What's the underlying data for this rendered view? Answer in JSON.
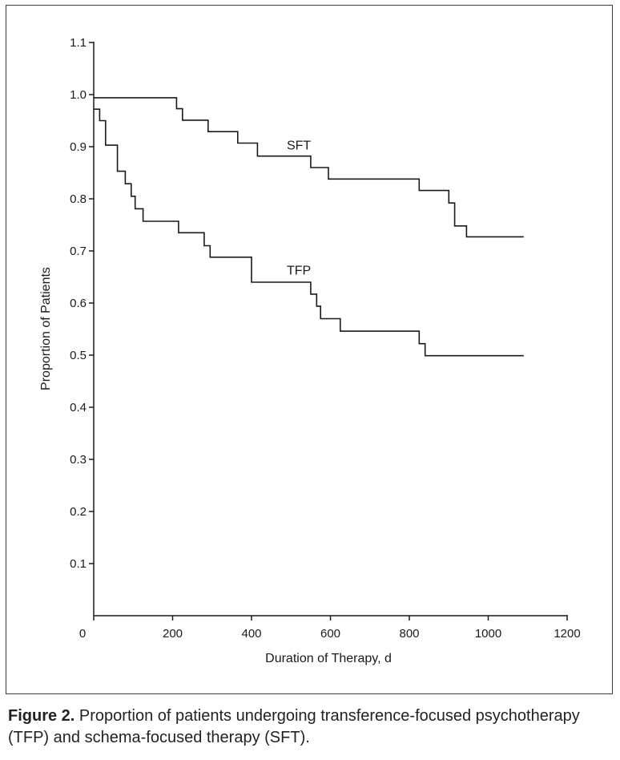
{
  "chart_data": {
    "type": "line",
    "step": true,
    "xlabel": "Duration of Therapy, d",
    "ylabel": "Proportion of Patients",
    "xlim": [
      0,
      1200
    ],
    "ylim": [
      0,
      1.1
    ],
    "xticks": [
      "0",
      "200",
      "400",
      "600",
      "800",
      "1000",
      "1200"
    ],
    "yticks": [
      "0.1",
      "0.2",
      "0.3",
      "0.4",
      "0.5",
      "0.6",
      "0.7",
      "0.8",
      "0.9",
      "1.0",
      "1.1"
    ],
    "grid": false,
    "series": [
      {
        "name": "SFT",
        "label_at": [
          520,
          0.895
        ],
        "points": [
          [
            0,
            0.994
          ],
          [
            210,
            0.994
          ],
          [
            210,
            0.973
          ],
          [
            225,
            0.973
          ],
          [
            225,
            0.951
          ],
          [
            290,
            0.951
          ],
          [
            290,
            0.929
          ],
          [
            365,
            0.929
          ],
          [
            365,
            0.907
          ],
          [
            415,
            0.907
          ],
          [
            415,
            0.882
          ],
          [
            550,
            0.882
          ],
          [
            550,
            0.86
          ],
          [
            595,
            0.86
          ],
          [
            595,
            0.838
          ],
          [
            825,
            0.838
          ],
          [
            825,
            0.816
          ],
          [
            900,
            0.816
          ],
          [
            900,
            0.792
          ],
          [
            915,
            0.792
          ],
          [
            915,
            0.748
          ],
          [
            945,
            0.748
          ],
          [
            945,
            0.727
          ],
          [
            1090,
            0.727
          ]
        ]
      },
      {
        "name": "TFP",
        "label_at": [
          520,
          0.655
        ],
        "points": [
          [
            0,
            0.972
          ],
          [
            15,
            0.972
          ],
          [
            15,
            0.95
          ],
          [
            30,
            0.95
          ],
          [
            30,
            0.903
          ],
          [
            60,
            0.903
          ],
          [
            60,
            0.853
          ],
          [
            80,
            0.853
          ],
          [
            80,
            0.829
          ],
          [
            95,
            0.829
          ],
          [
            95,
            0.805
          ],
          [
            105,
            0.805
          ],
          [
            105,
            0.781
          ],
          [
            125,
            0.781
          ],
          [
            125,
            0.757
          ],
          [
            215,
            0.757
          ],
          [
            215,
            0.735
          ],
          [
            280,
            0.735
          ],
          [
            280,
            0.71
          ],
          [
            295,
            0.71
          ],
          [
            295,
            0.688
          ],
          [
            400,
            0.688
          ],
          [
            400,
            0.64
          ],
          [
            550,
            0.64
          ],
          [
            550,
            0.617
          ],
          [
            565,
            0.617
          ],
          [
            565,
            0.594
          ],
          [
            575,
            0.594
          ],
          [
            575,
            0.57
          ],
          [
            625,
            0.57
          ],
          [
            625,
            0.546
          ],
          [
            825,
            0.546
          ],
          [
            825,
            0.522
          ],
          [
            840,
            0.522
          ],
          [
            840,
            0.499
          ],
          [
            1090,
            0.499
          ]
        ]
      }
    ]
  },
  "caption": {
    "label": "Figure 2.",
    "text": " Proportion of patients undergoing transference-focused psychotherapy (TFP) and schema-focused therapy (SFT)."
  }
}
